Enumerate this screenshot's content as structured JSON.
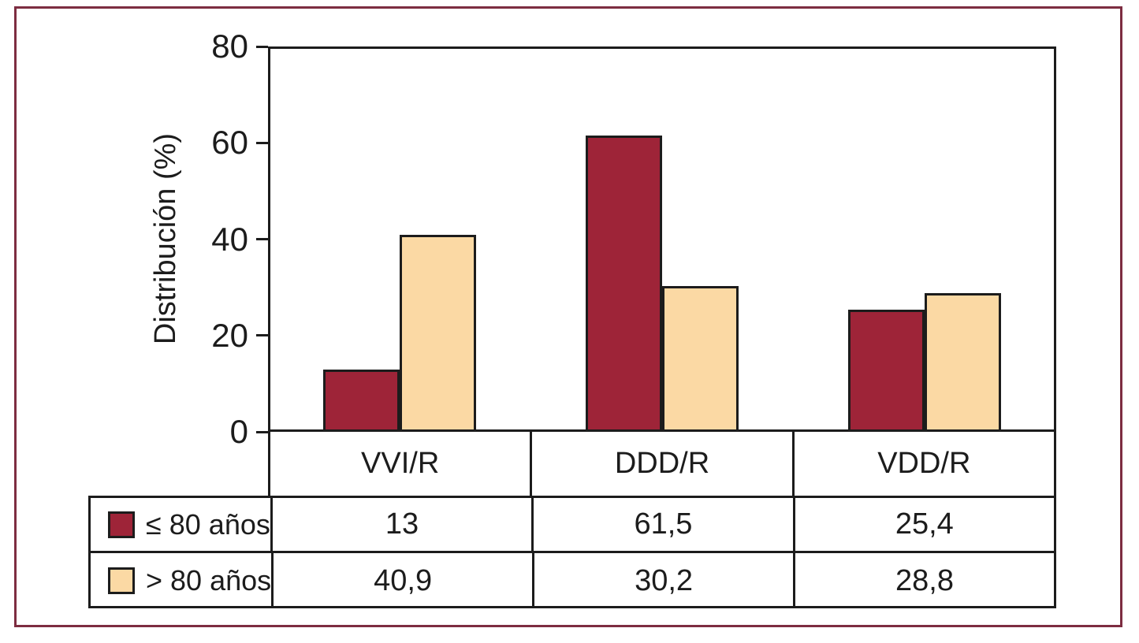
{
  "figure": {
    "frame_color": "#7d2d41",
    "axis_color": "#1c1c1c",
    "background": "#ffffff"
  },
  "chart_data": {
    "type": "bar",
    "title": "",
    "xlabel": "",
    "ylabel": "Distribución (%)",
    "ylim": [
      0,
      80
    ],
    "yticks": [
      0,
      20,
      40,
      60,
      80
    ],
    "ytick_labels": [
      "0",
      "20",
      "40",
      "60",
      "80"
    ],
    "grid": false,
    "legend_position": "table-left",
    "categories": [
      "VVI/R",
      "DDD/R",
      "VDD/R"
    ],
    "series": [
      {
        "name": "≤ 80 años",
        "color": "#9e2438",
        "values": [
          13,
          61.5,
          25.4
        ],
        "display_values": [
          "13",
          "61,5",
          "25,4"
        ]
      },
      {
        "name": "> 80 años",
        "color": "#fbd9a4",
        "values": [
          40.9,
          30.2,
          28.8
        ],
        "display_values": [
          "40,9",
          "30,2",
          "28,8"
        ]
      }
    ]
  }
}
